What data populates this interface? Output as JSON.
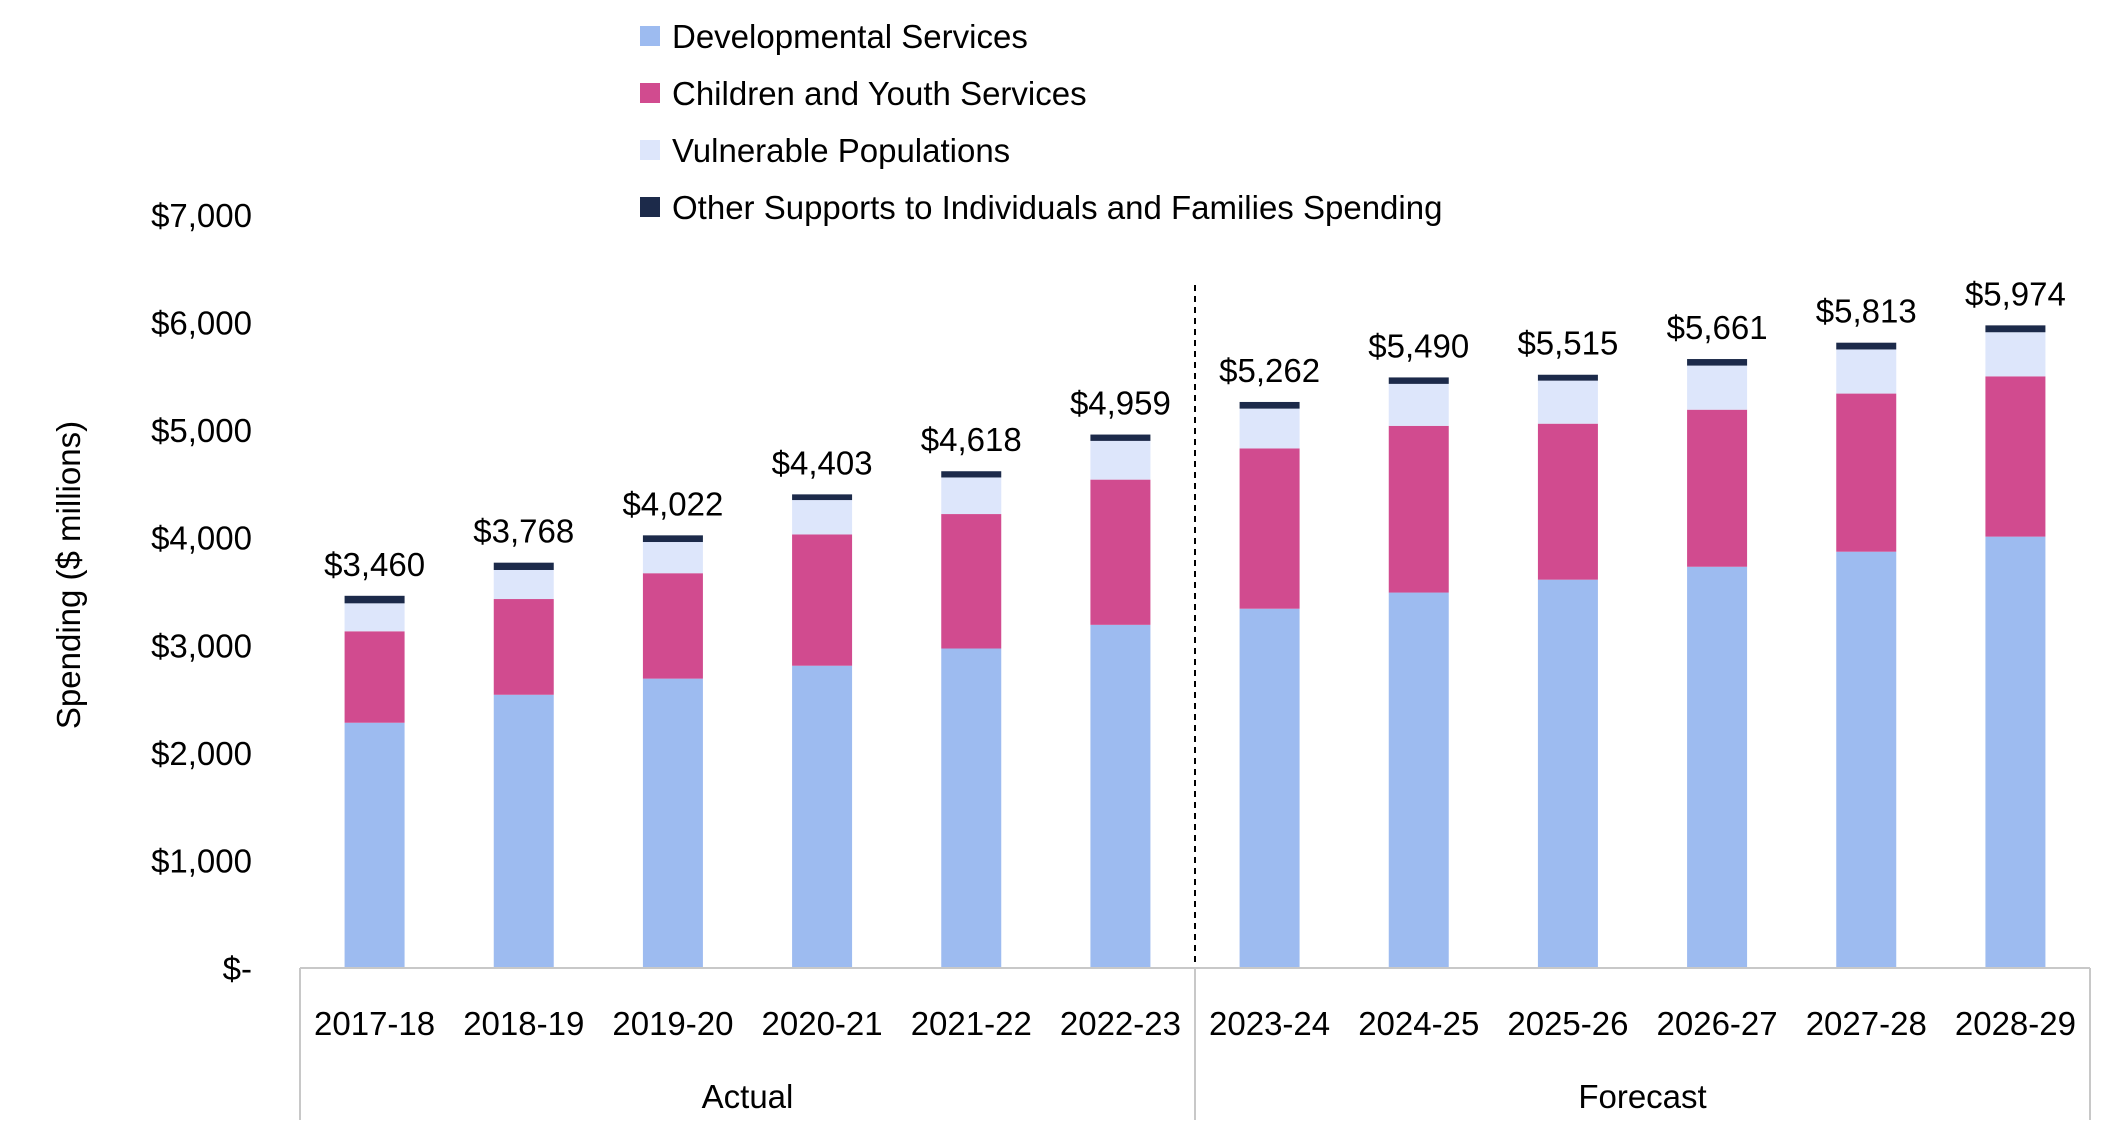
{
  "chart_data": {
    "type": "bar",
    "stacked": true,
    "categories": [
      "2017-18",
      "2018-19",
      "2019-20",
      "2020-21",
      "2021-22",
      "2022-23",
      "2023-24",
      "2024-25",
      "2025-26",
      "2026-27",
      "2027-28",
      "2028-29"
    ],
    "groups": [
      {
        "label": "Actual",
        "categories": [
          "2017-18",
          "2018-19",
          "2019-20",
          "2020-21",
          "2021-22",
          "2022-23"
        ]
      },
      {
        "label": "Forecast",
        "categories": [
          "2023-24",
          "2024-25",
          "2025-26",
          "2026-27",
          "2027-28",
          "2028-29"
        ]
      }
    ],
    "series": [
      {
        "name": "Developmental Services",
        "color": "#9dbbf0",
        "values": [
          2280,
          2540,
          2690,
          2810,
          2970,
          3190,
          3340,
          3490,
          3610,
          3730,
          3870,
          4010
        ]
      },
      {
        "name": "Children and Youth Services",
        "color": "#d14b8f",
        "values": [
          850,
          890,
          980,
          1220,
          1250,
          1350,
          1490,
          1550,
          1450,
          1460,
          1470,
          1490
        ]
      },
      {
        "name": "Vulnerable Populations",
        "color": "#dde6fb",
        "values": [
          260,
          270,
          290,
          320,
          340,
          360,
          370,
          390,
          400,
          410,
          410,
          410
        ]
      },
      {
        "name": "Other Supports to Individuals and Families Spending",
        "color": "#1c2a4a",
        "values": [
          70,
          68,
          62,
          53,
          58,
          59,
          62,
          60,
          55,
          61,
          63,
          64
        ]
      }
    ],
    "totals": [
      "$3,460",
      "$3,768",
      "$4,022",
      "$4,403",
      "$4,618",
      "$4,959",
      "$5,262",
      "$5,490",
      "$5,515",
      "$5,661",
      "$5,813",
      "$5,974"
    ],
    "ylabel": "Spending ($ millions)",
    "xlabel": "",
    "ylim": [
      0,
      7000
    ],
    "yticks": [
      0,
      1000,
      2000,
      3000,
      4000,
      5000,
      6000,
      7000
    ],
    "ytick_labels": [
      "$-",
      "$1,000",
      "$2,000",
      "$3,000",
      "$4,000",
      "$5,000",
      "$6,000",
      "$7,000"
    ],
    "grid": false,
    "legend_position": "top",
    "divider": "dashed line between Actual and Forecast"
  }
}
